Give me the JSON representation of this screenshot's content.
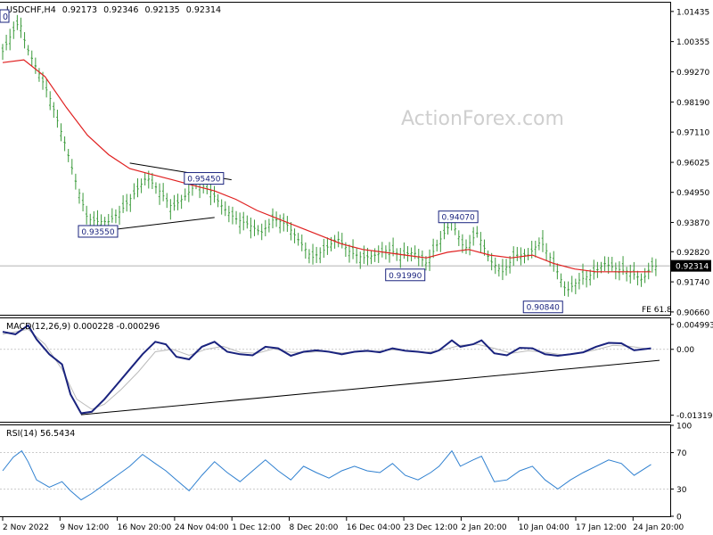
{
  "chart_data": [
    {
      "type": "candlestick",
      "header": {
        "symbol": "USDCHF,H4",
        "open": "0.92173",
        "high": "0.92346",
        "low": "0.92135",
        "close": "0.92314"
      },
      "watermark": "ActionForex.com",
      "y_ticks": [
        "1.01435",
        "1.00355",
        "0.99270",
        "0.98190",
        "0.97110",
        "0.96025",
        "0.94950",
        "0.93870",
        "0.92820",
        "0.91740",
        "0.90660"
      ],
      "ylim": [
        0.9056,
        1.0175
      ],
      "current_price": {
        "value": 0.92314,
        "label": "0.92314"
      },
      "price_path": [
        [
          0,
          1.0
        ],
        [
          0.4,
          1.006
        ],
        [
          0.8,
          1.011
        ],
        [
          1.1,
          1.002
        ],
        [
          1.6,
          0.994
        ],
        [
          2.2,
          0.984
        ],
        [
          2.9,
          0.968
        ],
        [
          3.5,
          0.952
        ],
        [
          4.0,
          0.94
        ],
        [
          4.5,
          0.939
        ],
        [
          5.0,
          0.939
        ],
        [
          5.6,
          0.943
        ],
        [
          6.2,
          0.949
        ],
        [
          6.8,
          0.955
        ],
        [
          7.4,
          0.95
        ],
        [
          8.0,
          0.944
        ],
        [
          8.6,
          0.948
        ],
        [
          9.2,
          0.953
        ],
        [
          9.8,
          0.95
        ],
        [
          10.4,
          0.944
        ],
        [
          11.0,
          0.94
        ],
        [
          11.6,
          0.938
        ],
        [
          12.2,
          0.935
        ],
        [
          12.8,
          0.94
        ],
        [
          13.4,
          0.938
        ],
        [
          14.0,
          0.932
        ],
        [
          14.6,
          0.926
        ],
        [
          15.2,
          0.929
        ],
        [
          15.8,
          0.933
        ],
        [
          16.4,
          0.928
        ],
        [
          17.0,
          0.926
        ],
        [
          17.6,
          0.927
        ],
        [
          18.2,
          0.929
        ],
        [
          18.8,
          0.927
        ],
        [
          19.4,
          0.928
        ],
        [
          20.0,
          0.924
        ],
        [
          20.6,
          0.932
        ],
        [
          21.2,
          0.939
        ],
        [
          21.8,
          0.929
        ],
        [
          22.4,
          0.935
        ],
        [
          23.0,
          0.925
        ],
        [
          23.6,
          0.921
        ],
        [
          24.2,
          0.927
        ],
        [
          24.8,
          0.927
        ],
        [
          25.4,
          0.932
        ],
        [
          26.0,
          0.924
        ],
        [
          26.6,
          0.914
        ],
        [
          27.2,
          0.918
        ],
        [
          27.8,
          0.92
        ],
        [
          28.4,
          0.924
        ],
        [
          29.0,
          0.922
        ],
        [
          29.6,
          0.921
        ],
        [
          30.2,
          0.918
        ],
        [
          30.6,
          0.923
        ]
      ],
      "ma_path": [
        [
          0,
          0.996
        ],
        [
          1.0,
          0.997
        ],
        [
          2.0,
          0.991
        ],
        [
          3.0,
          0.98
        ],
        [
          4.0,
          0.97
        ],
        [
          5.0,
          0.963
        ],
        [
          6.0,
          0.958
        ],
        [
          7.0,
          0.956
        ],
        [
          8.0,
          0.954
        ],
        [
          9.0,
          0.952
        ],
        [
          10.0,
          0.95
        ],
        [
          11.0,
          0.947
        ],
        [
          12.0,
          0.943
        ],
        [
          13.0,
          0.94
        ],
        [
          14.0,
          0.937
        ],
        [
          15.0,
          0.934
        ],
        [
          16.0,
          0.931
        ],
        [
          17.0,
          0.929
        ],
        [
          18.0,
          0.928
        ],
        [
          19.0,
          0.927
        ],
        [
          20.0,
          0.926
        ],
        [
          21.0,
          0.928
        ],
        [
          22.0,
          0.929
        ],
        [
          23.0,
          0.927
        ],
        [
          24.0,
          0.926
        ],
        [
          25.0,
          0.927
        ],
        [
          26.0,
          0.924
        ],
        [
          27.0,
          0.922
        ],
        [
          28.0,
          0.921
        ],
        [
          29.0,
          0.921
        ],
        [
          30.0,
          0.921
        ],
        [
          30.6,
          0.921
        ]
      ],
      "annotations": [
        {
          "label": "0.93550",
          "x": 4.5,
          "y": 0.9355
        },
        {
          "label": "0.95450",
          "x": 9.5,
          "y": 0.9545
        },
        {
          "label": "0.94070",
          "x": 21.5,
          "y": 0.9407
        },
        {
          "label": "0.91990",
          "x": 19.0,
          "y": 0.9199
        },
        {
          "label": "0.90840",
          "x": 25.5,
          "y": 0.9084
        }
      ],
      "trendlines": [
        {
          "from": [
            4.5,
            0.9355
          ],
          "to": [
            10.0,
            0.9405
          ]
        },
        {
          "from": [
            6.0,
            0.96
          ],
          "to": [
            10.8,
            0.954
          ]
        }
      ],
      "fe_label": "FE 61.8"
    },
    {
      "type": "line",
      "title": "MACD(12,26,9) 0.000228 -0.000296",
      "y_ticks": [
        "0.004993",
        "0.00",
        "-0.013193"
      ],
      "ylim": [
        -0.0145,
        0.0062
      ],
      "series": [
        {
          "values": [
            [
              0,
              0.0035
            ],
            [
              0.6,
              0.003
            ],
            [
              1.2,
              0.0048
            ],
            [
              1.6,
              0.002
            ],
            [
              2.2,
              -0.001
            ],
            [
              2.8,
              -0.003
            ],
            [
              3.2,
              -0.009
            ],
            [
              3.7,
              -0.0128
            ],
            [
              4.2,
              -0.0125
            ],
            [
              4.8,
              -0.01
            ],
            [
              5.4,
              -0.007
            ],
            [
              6.0,
              -0.004
            ],
            [
              6.6,
              -0.001
            ],
            [
              7.2,
              0.0015
            ],
            [
              7.7,
              0.001
            ],
            [
              8.2,
              -0.0015
            ],
            [
              8.8,
              -0.002
            ],
            [
              9.4,
              0.0005
            ],
            [
              10.0,
              0.0015
            ],
            [
              10.6,
              -0.0005
            ],
            [
              11.2,
              -0.001
            ],
            [
              11.8,
              -0.0012
            ],
            [
              12.4,
              0.0005
            ],
            [
              13.0,
              0.0002
            ],
            [
              13.6,
              -0.0013
            ],
            [
              14.2,
              -0.0005
            ],
            [
              14.8,
              -0.0002
            ],
            [
              15.4,
              -0.0005
            ],
            [
              16.0,
              -0.001
            ],
            [
              16.6,
              -0.0005
            ],
            [
              17.2,
              -0.0003
            ],
            [
              17.8,
              -0.0006
            ],
            [
              18.4,
              0.0002
            ],
            [
              19.0,
              -0.0003
            ],
            [
              19.6,
              -0.0005
            ],
            [
              20.2,
              -0.0008
            ],
            [
              20.6,
              -0.0002
            ],
            [
              21.2,
              0.0018
            ],
            [
              21.6,
              0.0005
            ],
            [
              22.2,
              0.001
            ],
            [
              22.6,
              0.0018
            ],
            [
              23.2,
              -0.0008
            ],
            [
              23.8,
              -0.0012
            ],
            [
              24.4,
              0.0003
            ],
            [
              25.0,
              0.0002
            ],
            [
              25.6,
              -0.001
            ],
            [
              26.2,
              -0.0013
            ],
            [
              26.8,
              -0.001
            ],
            [
              27.4,
              -0.0006
            ],
            [
              28.0,
              0.0005
            ],
            [
              28.6,
              0.0013
            ],
            [
              29.2,
              0.0012
            ],
            [
              29.8,
              -0.0002
            ],
            [
              30.6,
              0.0002
            ]
          ]
        },
        {
          "values": [
            [
              0,
              0.003
            ],
            [
              1.2,
              0.004
            ],
            [
              2.0,
              0.001
            ],
            [
              2.8,
              -0.004
            ],
            [
              3.5,
              -0.01
            ],
            [
              4.2,
              -0.012
            ],
            [
              4.8,
              -0.011
            ],
            [
              5.6,
              -0.008
            ],
            [
              6.4,
              -0.0045
            ],
            [
              7.2,
              -0.0005
            ],
            [
              8.0,
              0.0
            ],
            [
              8.8,
              -0.0012
            ],
            [
              9.6,
              0.0
            ],
            [
              10.4,
              0.0006
            ],
            [
              11.2,
              -0.0006
            ],
            [
              12.0,
              -0.0008
            ],
            [
              12.8,
              0.0001
            ],
            [
              13.6,
              -0.0006
            ],
            [
              14.4,
              -0.0006
            ],
            [
              15.2,
              -0.0004
            ],
            [
              16.0,
              -0.0007
            ],
            [
              16.8,
              -0.0005
            ],
            [
              17.6,
              -0.0004
            ],
            [
              18.4,
              -0.0001
            ],
            [
              19.2,
              -0.0003
            ],
            [
              20.0,
              -0.0006
            ],
            [
              20.8,
              -0.0001
            ],
            [
              21.6,
              0.0008
            ],
            [
              22.4,
              0.001
            ],
            [
              23.2,
              0.0002
            ],
            [
              24.0,
              -0.0008
            ],
            [
              24.8,
              -0.0003
            ],
            [
              25.6,
              -0.0006
            ],
            [
              26.4,
              -0.0011
            ],
            [
              27.2,
              -0.0008
            ],
            [
              28.0,
              -0.0001
            ],
            [
              28.8,
              0.0008
            ],
            [
              29.6,
              0.0006
            ],
            [
              30.6,
              0.0
            ]
          ]
        }
      ],
      "trendline": {
        "from": [
          3.7,
          -0.0131
        ],
        "to": [
          31.0,
          -0.0022
        ]
      }
    },
    {
      "type": "line",
      "title": "RSI(14) 56.5434",
      "y_ticks": [
        "100",
        "70",
        "30",
        "0"
      ],
      "ylim": [
        0,
        100
      ],
      "levels": [
        70,
        30
      ],
      "series": [
        {
          "values": [
            [
              0,
              50
            ],
            [
              0.5,
              65
            ],
            [
              0.9,
              72
            ],
            [
              1.2,
              60
            ],
            [
              1.6,
              40
            ],
            [
              2.2,
              32
            ],
            [
              2.8,
              38
            ],
            [
              3.2,
              28
            ],
            [
              3.7,
              18
            ],
            [
              4.2,
              25
            ],
            [
              4.8,
              35
            ],
            [
              5.4,
              45
            ],
            [
              6.0,
              55
            ],
            [
              6.6,
              68
            ],
            [
              7.2,
              58
            ],
            [
              7.7,
              50
            ],
            [
              8.2,
              40
            ],
            [
              8.8,
              28
            ],
            [
              9.4,
              45
            ],
            [
              10.0,
              60
            ],
            [
              10.6,
              48
            ],
            [
              11.2,
              38
            ],
            [
              11.8,
              50
            ],
            [
              12.4,
              62
            ],
            [
              13.0,
              50
            ],
            [
              13.6,
              40
            ],
            [
              14.2,
              55
            ],
            [
              14.8,
              48
            ],
            [
              15.4,
              42
            ],
            [
              16.0,
              50
            ],
            [
              16.6,
              55
            ],
            [
              17.2,
              50
            ],
            [
              17.8,
              48
            ],
            [
              18.4,
              58
            ],
            [
              19.0,
              45
            ],
            [
              19.6,
              40
            ],
            [
              20.2,
              48
            ],
            [
              20.6,
              55
            ],
            [
              21.2,
              72
            ],
            [
              21.6,
              55
            ],
            [
              22.2,
              62
            ],
            [
              22.6,
              66
            ],
            [
              23.2,
              38
            ],
            [
              23.8,
              40
            ],
            [
              24.4,
              50
            ],
            [
              25.0,
              55
            ],
            [
              25.6,
              40
            ],
            [
              26.2,
              30
            ],
            [
              26.8,
              40
            ],
            [
              27.4,
              48
            ],
            [
              28.0,
              55
            ],
            [
              28.6,
              62
            ],
            [
              29.2,
              58
            ],
            [
              29.8,
              45
            ],
            [
              30.6,
              57
            ]
          ]
        }
      ]
    }
  ],
  "x_axis_labels": [
    "2 Nov 2022",
    "9 Nov 12:00",
    "16 Nov 20:00",
    "24 Nov 04:00",
    "1 Dec 12:00",
    "8 Dec 20:00",
    "16 Dec 04:00",
    "23 Dec 12:00",
    "2 Jan 20:00",
    "10 Jan 04:00",
    "17 Jan 12:00",
    "24 Jan 20:00"
  ],
  "colors": {
    "candles": "#3a9a3a",
    "moving_average": "#e02020",
    "macd_line": "#1a237e",
    "signal_line": "#bbbbbb",
    "rsi_line": "#2f80d0",
    "annotation_border": "#1a237e",
    "trendline": "#000000",
    "watermark": "#cfcfcf"
  }
}
